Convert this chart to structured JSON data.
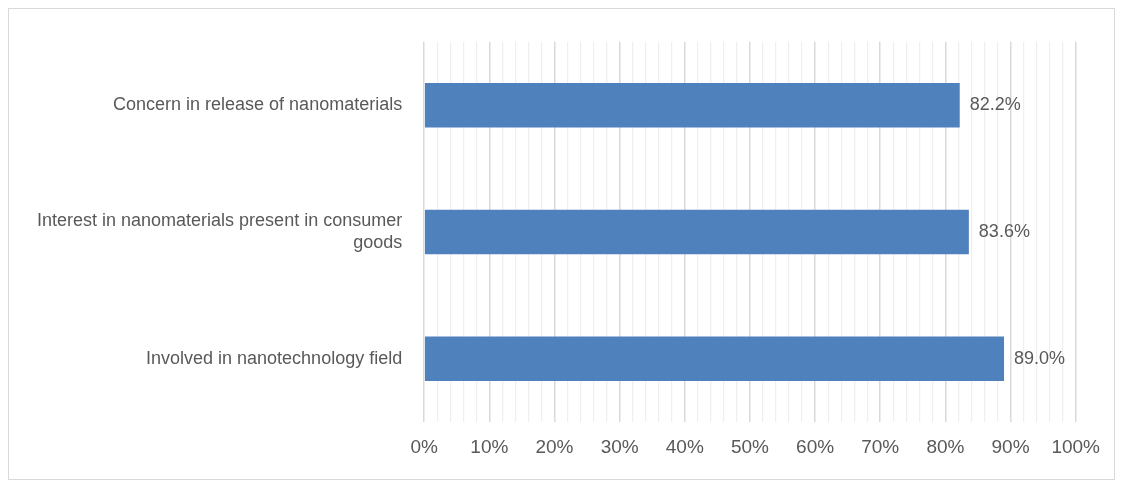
{
  "chart_data": {
    "type": "bar",
    "orientation": "horizontal",
    "categories": [
      "Concern in release of nanomaterials",
      "Interest in nanomaterials present in consumer goods",
      "Involved in nanotechnology field"
    ],
    "series": [
      {
        "color": "#4f81bd",
        "values": [
          82.2,
          83.6,
          89.0
        ],
        "value_labels": [
          "82.2%",
          "83.6%",
          "89.0%"
        ]
      }
    ],
    "xlim": [
      0,
      100
    ],
    "xticks": [
      {
        "value": 0,
        "label": "0%"
      },
      {
        "value": 2,
        "label": null
      },
      {
        "value": 4,
        "label": null
      },
      {
        "value": 6,
        "label": null
      },
      {
        "value": 8,
        "label": null
      },
      {
        "value": 10,
        "label": "10%"
      },
      {
        "value": 12,
        "label": null
      },
      {
        "value": 14,
        "label": null
      },
      {
        "value": 16,
        "label": null
      },
      {
        "value": 18,
        "label": null
      },
      {
        "value": 20,
        "label": "20%"
      },
      {
        "value": 22,
        "label": null
      },
      {
        "value": 24,
        "label": null
      },
      {
        "value": 26,
        "label": null
      },
      {
        "value": 28,
        "label": null
      },
      {
        "value": 30,
        "label": "30%"
      },
      {
        "value": 32,
        "label": null
      },
      {
        "value": 34,
        "label": null
      },
      {
        "value": 36,
        "label": null
      },
      {
        "value": 38,
        "label": null
      },
      {
        "value": 40,
        "label": "40%"
      },
      {
        "value": 42,
        "label": null
      },
      {
        "value": 44,
        "label": null
      },
      {
        "value": 46,
        "label": null
      },
      {
        "value": 48,
        "label": null
      },
      {
        "value": 50,
        "label": "50%"
      },
      {
        "value": 52,
        "label": null
      },
      {
        "value": 54,
        "label": null
      },
      {
        "value": 56,
        "label": null
      },
      {
        "value": 58,
        "label": null
      },
      {
        "value": 60,
        "label": "60%"
      },
      {
        "value": 62,
        "label": null
      },
      {
        "value": 64,
        "label": null
      },
      {
        "value": 66,
        "label": null
      },
      {
        "value": 68,
        "label": null
      },
      {
        "value": 70,
        "label": "70%"
      },
      {
        "value": 72,
        "label": null
      },
      {
        "value": 74,
        "label": null
      },
      {
        "value": 76,
        "label": null
      },
      {
        "value": 78,
        "label": null
      },
      {
        "value": 80,
        "label": "80%"
      },
      {
        "value": 82,
        "label": null
      },
      {
        "value": 84,
        "label": null
      },
      {
        "value": 86,
        "label": null
      },
      {
        "value": 88,
        "label": null
      },
      {
        "value": 90,
        "label": "90%"
      },
      {
        "value": 92,
        "label": null
      },
      {
        "value": 94,
        "label": null
      },
      {
        "value": 96,
        "label": null
      },
      {
        "value": 98,
        "label": null
      },
      {
        "value": 100,
        "label": "100%"
      }
    ],
    "grid": "x",
    "legend": false
  }
}
